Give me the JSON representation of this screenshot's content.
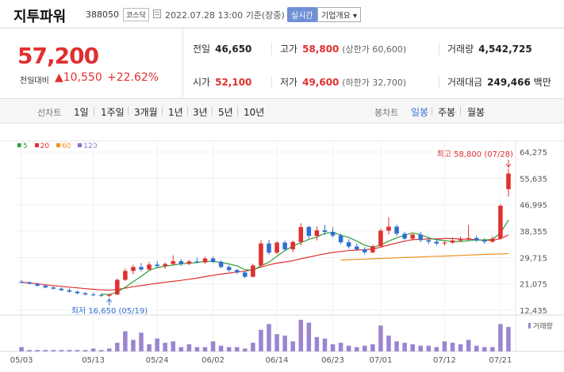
{
  "header": {
    "stock_name": "지투파워",
    "stock_code": "388050",
    "market": "코스닥",
    "datetime": "2022.07.28 13:00",
    "basis": "기준(장중)",
    "live_badge": "실시간",
    "company_info_btn": "기업개요 ▾"
  },
  "price": {
    "current": "57,200",
    "change_label": "전일대비",
    "change_value": "▲10,550",
    "change_pct": "+22.62%"
  },
  "stats": {
    "prev_close_label": "전일",
    "prev_close": "46,650",
    "high_label": "고가",
    "high": "58,800",
    "high_sub": "(상한가 60,600)",
    "volume_label": "거래량",
    "volume": "4,542,725",
    "open_label": "시가",
    "open": "52,100",
    "low_label": "저가",
    "low": "49,600",
    "low_sub": "(하한가 32,700)",
    "amount_label": "거래대금",
    "amount": "249,466",
    "amount_unit": "백만"
  },
  "toolbar": {
    "line_chart_label": "선차트",
    "periods": [
      "1일",
      "1주일",
      "3개월",
      "1년",
      "3년",
      "5년",
      "10년"
    ],
    "candle_label": "봉차트",
    "candles": [
      "일봉",
      "주봉",
      "월봉"
    ],
    "active_candle": "일봉"
  },
  "chart_data": {
    "type": "candlestick",
    "legend": [
      {
        "name": "5",
        "color": "#2e9e3a"
      },
      {
        "name": "20",
        "color": "#e03030"
      },
      {
        "name": "60",
        "color": "#f0901e"
      },
      {
        "name": "120",
        "color": "#8a6fc9"
      }
    ],
    "y_ticks": [
      "64,275",
      "55,635",
      "46,995",
      "38,355",
      "29,715",
      "21,075",
      "12,435"
    ],
    "ylim": [
      12435,
      64275
    ],
    "x_ticks": [
      "05/03",
      "05/13",
      "05/24",
      "06/02",
      "06/14",
      "06/23",
      "07/01",
      "07/12",
      "07/21"
    ],
    "annotations": {
      "high": "최고 58,800 (07/28)",
      "low": "최저 16,650 (05/19)"
    },
    "volume_label": "거래량",
    "candles": [
      {
        "o": 21800,
        "h": 22400,
        "l": 21200,
        "c": 21600
      },
      {
        "o": 21600,
        "h": 22000,
        "l": 20900,
        "c": 21100
      },
      {
        "o": 21100,
        "h": 21500,
        "l": 20200,
        "c": 20500
      },
      {
        "o": 20500,
        "h": 20900,
        "l": 19600,
        "c": 19900
      },
      {
        "o": 19900,
        "h": 20300,
        "l": 19200,
        "c": 19500
      },
      {
        "o": 19500,
        "h": 19900,
        "l": 18700,
        "c": 19000
      },
      {
        "o": 19000,
        "h": 19600,
        "l": 18200,
        "c": 18500
      },
      {
        "o": 18500,
        "h": 18900,
        "l": 17700,
        "c": 18000
      },
      {
        "o": 18000,
        "h": 18400,
        "l": 17300,
        "c": 17600
      },
      {
        "o": 17600,
        "h": 18200,
        "l": 17000,
        "c": 17400
      },
      {
        "o": 17400,
        "h": 17900,
        "l": 16800,
        "c": 17200
      },
      {
        "o": 17200,
        "h": 17800,
        "l": 16650,
        "c": 17600
      },
      {
        "o": 17600,
        "h": 22800,
        "l": 17400,
        "c": 22400
      },
      {
        "o": 22400,
        "h": 26100,
        "l": 22000,
        "c": 25300
      },
      {
        "o": 25300,
        "h": 27300,
        "l": 24200,
        "c": 26600
      },
      {
        "o": 26600,
        "h": 27900,
        "l": 25200,
        "c": 25800
      },
      {
        "o": 25800,
        "h": 28300,
        "l": 25300,
        "c": 27400
      },
      {
        "o": 27400,
        "h": 28600,
        "l": 26200,
        "c": 26900
      },
      {
        "o": 26900,
        "h": 28100,
        "l": 26000,
        "c": 27600
      },
      {
        "o": 27600,
        "h": 30400,
        "l": 27200,
        "c": 28500
      },
      {
        "o": 28500,
        "h": 29200,
        "l": 26900,
        "c": 27700
      },
      {
        "o": 27700,
        "h": 29000,
        "l": 27200,
        "c": 28400
      },
      {
        "o": 28400,
        "h": 29600,
        "l": 27800,
        "c": 28100
      },
      {
        "o": 28100,
        "h": 29900,
        "l": 27600,
        "c": 29400
      },
      {
        "o": 29400,
        "h": 30000,
        "l": 27900,
        "c": 28300
      },
      {
        "o": 28300,
        "h": 28800,
        "l": 26200,
        "c": 26600
      },
      {
        "o": 26600,
        "h": 27200,
        "l": 25100,
        "c": 25600
      },
      {
        "o": 25600,
        "h": 26000,
        "l": 24300,
        "c": 24800
      },
      {
        "o": 24800,
        "h": 25400,
        "l": 22900,
        "c": 23400
      },
      {
        "o": 23400,
        "h": 27700,
        "l": 23100,
        "c": 27100
      },
      {
        "o": 27100,
        "h": 35400,
        "l": 26700,
        "c": 34300
      },
      {
        "o": 34300,
        "h": 35500,
        "l": 30600,
        "c": 31300
      },
      {
        "o": 31300,
        "h": 35100,
        "l": 30800,
        "c": 34600
      },
      {
        "o": 34600,
        "h": 35300,
        "l": 31800,
        "c": 32400
      },
      {
        "o": 32400,
        "h": 35300,
        "l": 31400,
        "c": 34800
      },
      {
        "o": 34800,
        "h": 40900,
        "l": 33600,
        "c": 39700
      },
      {
        "o": 39700,
        "h": 40200,
        "l": 36000,
        "c": 36800
      },
      {
        "o": 36800,
        "h": 39900,
        "l": 35300,
        "c": 38600
      },
      {
        "o": 38600,
        "h": 40400,
        "l": 37100,
        "c": 38100
      },
      {
        "o": 38100,
        "h": 39600,
        "l": 36300,
        "c": 36900
      },
      {
        "o": 36900,
        "h": 37600,
        "l": 34100,
        "c": 34700
      },
      {
        "o": 34700,
        "h": 35700,
        "l": 32600,
        "c": 33300
      },
      {
        "o": 33300,
        "h": 34300,
        "l": 31800,
        "c": 32400
      },
      {
        "o": 32400,
        "h": 33100,
        "l": 30700,
        "c": 31400
      },
      {
        "o": 31400,
        "h": 33900,
        "l": 31100,
        "c": 33400
      },
      {
        "o": 33400,
        "h": 39200,
        "l": 32900,
        "c": 38500
      },
      {
        "o": 38500,
        "h": 42900,
        "l": 37300,
        "c": 39800
      },
      {
        "o": 39800,
        "h": 40500,
        "l": 36800,
        "c": 37500
      },
      {
        "o": 37500,
        "h": 38100,
        "l": 35400,
        "c": 35900
      },
      {
        "o": 35900,
        "h": 37800,
        "l": 35300,
        "c": 37200
      },
      {
        "o": 37200,
        "h": 38100,
        "l": 34800,
        "c": 35400
      },
      {
        "o": 35400,
        "h": 36400,
        "l": 34100,
        "c": 34900
      },
      {
        "o": 34900,
        "h": 35600,
        "l": 33700,
        "c": 34300
      },
      {
        "o": 34300,
        "h": 35100,
        "l": 33600,
        "c": 34600
      },
      {
        "o": 34600,
        "h": 36200,
        "l": 34200,
        "c": 35300
      },
      {
        "o": 35300,
        "h": 36600,
        "l": 34700,
        "c": 35800
      },
      {
        "o": 35800,
        "h": 40400,
        "l": 35300,
        "c": 36100
      },
      {
        "o": 36100,
        "h": 36900,
        "l": 34800,
        "c": 35300
      },
      {
        "o": 35300,
        "h": 36100,
        "l": 34200,
        "c": 34900
      },
      {
        "o": 34900,
        "h": 36700,
        "l": 34600,
        "c": 35900
      },
      {
        "o": 35900,
        "h": 47200,
        "l": 35600,
        "c": 46650
      },
      {
        "o": 52100,
        "h": 58800,
        "l": 49600,
        "c": 57200
      }
    ],
    "volumes": [
      3,
      1,
      1,
      1,
      1,
      1,
      1,
      1,
      1,
      2,
      1,
      2,
      6,
      14,
      8,
      13,
      5,
      9,
      6,
      7,
      3,
      5,
      3,
      3,
      7,
      4,
      3,
      3,
      2,
      6,
      15,
      19,
      12,
      11,
      7,
      22,
      20,
      10,
      9,
      5,
      6,
      4,
      3,
      4,
      5,
      18,
      11,
      7,
      6,
      5,
      4,
      4,
      3,
      7,
      6,
      5,
      8,
      4,
      3,
      3,
      19,
      17
    ]
  }
}
